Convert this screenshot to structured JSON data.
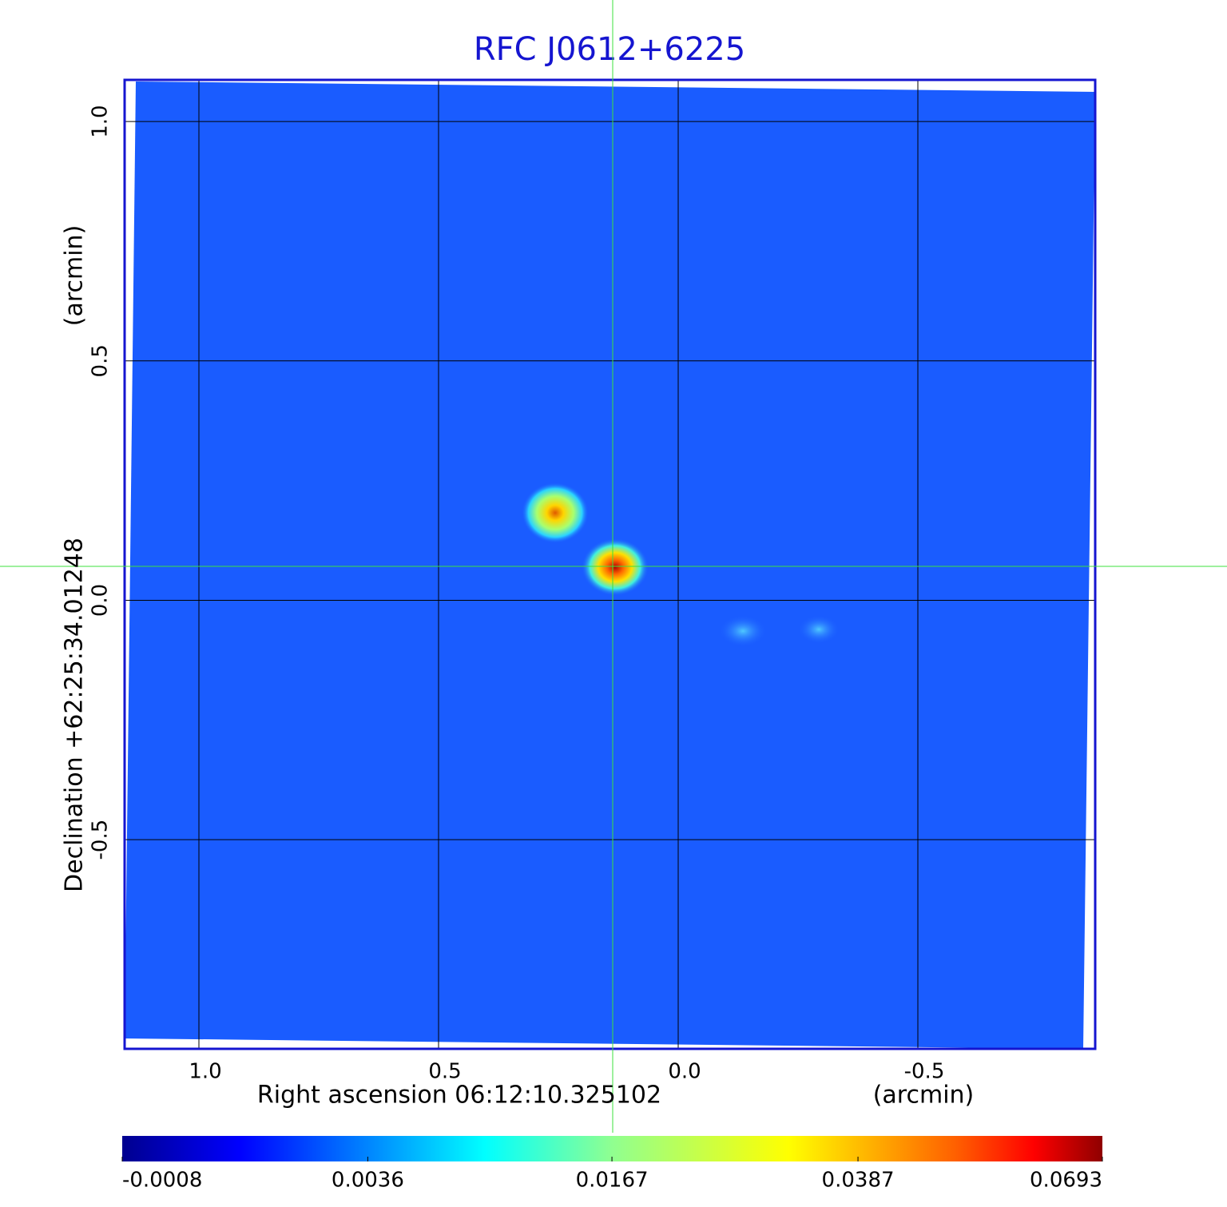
{
  "chart_data": {
    "type": "image",
    "title": "RFC J0612+6225",
    "x_label": "Right ascension  06:12:10.325102",
    "x_unit": "(arcmin)",
    "y_label": "Declination  +62:25:34.01248",
    "y_unit": "(arcmin)",
    "xlim": [
      1.155,
      -0.87
    ],
    "xticks": [
      {
        "value": 1,
        "label": "1.0"
      },
      0.5,
      {
        "value": 0,
        "label": "0.0"
      },
      -0.5
    ],
    "ylim": [
      -0.937,
      1.087
    ],
    "yticks": [
      {
        "value": 1,
        "label": "1.0"
      },
      0.5,
      {
        "value": 0,
        "label": "0.0"
      },
      -0.5
    ],
    "grid": true,
    "colorbar": {
      "scale": "sqrt",
      "lim": [
        -0.0008,
        0.0693
      ],
      "ticks": [
        -0.0008,
        0.0036,
        0.0167,
        0.0387,
        0.0693
      ]
    }
  }
}
